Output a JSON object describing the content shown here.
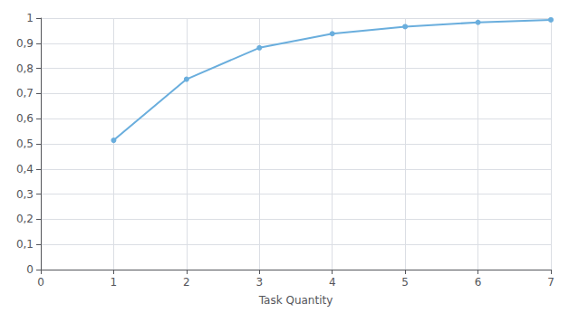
{
  "chart_data": {
    "type": "line",
    "xlabel": "Task Quantity",
    "x": [
      1,
      2,
      3,
      4,
      5,
      6,
      7
    ],
    "values": [
      0.514,
      0.757,
      0.882,
      0.938,
      0.966,
      0.983,
      0.993
    ],
    "color": "#6aaedd",
    "marker": "circle",
    "xlim": [
      0,
      7
    ],
    "xticks": [
      0,
      1,
      2,
      3,
      4,
      5,
      6,
      7
    ],
    "ylim": [
      0,
      1.0
    ],
    "yticks": [
      0,
      {
        "value": 0.1,
        "label": "0,1"
      },
      {
        "value": 0.2,
        "label": "0,2"
      },
      {
        "value": 0.3,
        "label": "0,3"
      },
      {
        "value": 0.4,
        "label": "0,4"
      },
      {
        "value": 0.5,
        "label": "0,5"
      },
      {
        "value": 0.6,
        "label": "0,6"
      },
      {
        "value": 0.7,
        "label": "0,7"
      },
      {
        "value": 0.8,
        "label": "0,8"
      },
      {
        "value": 0.9,
        "label": "0,9"
      },
      1
    ],
    "grid": true
  }
}
